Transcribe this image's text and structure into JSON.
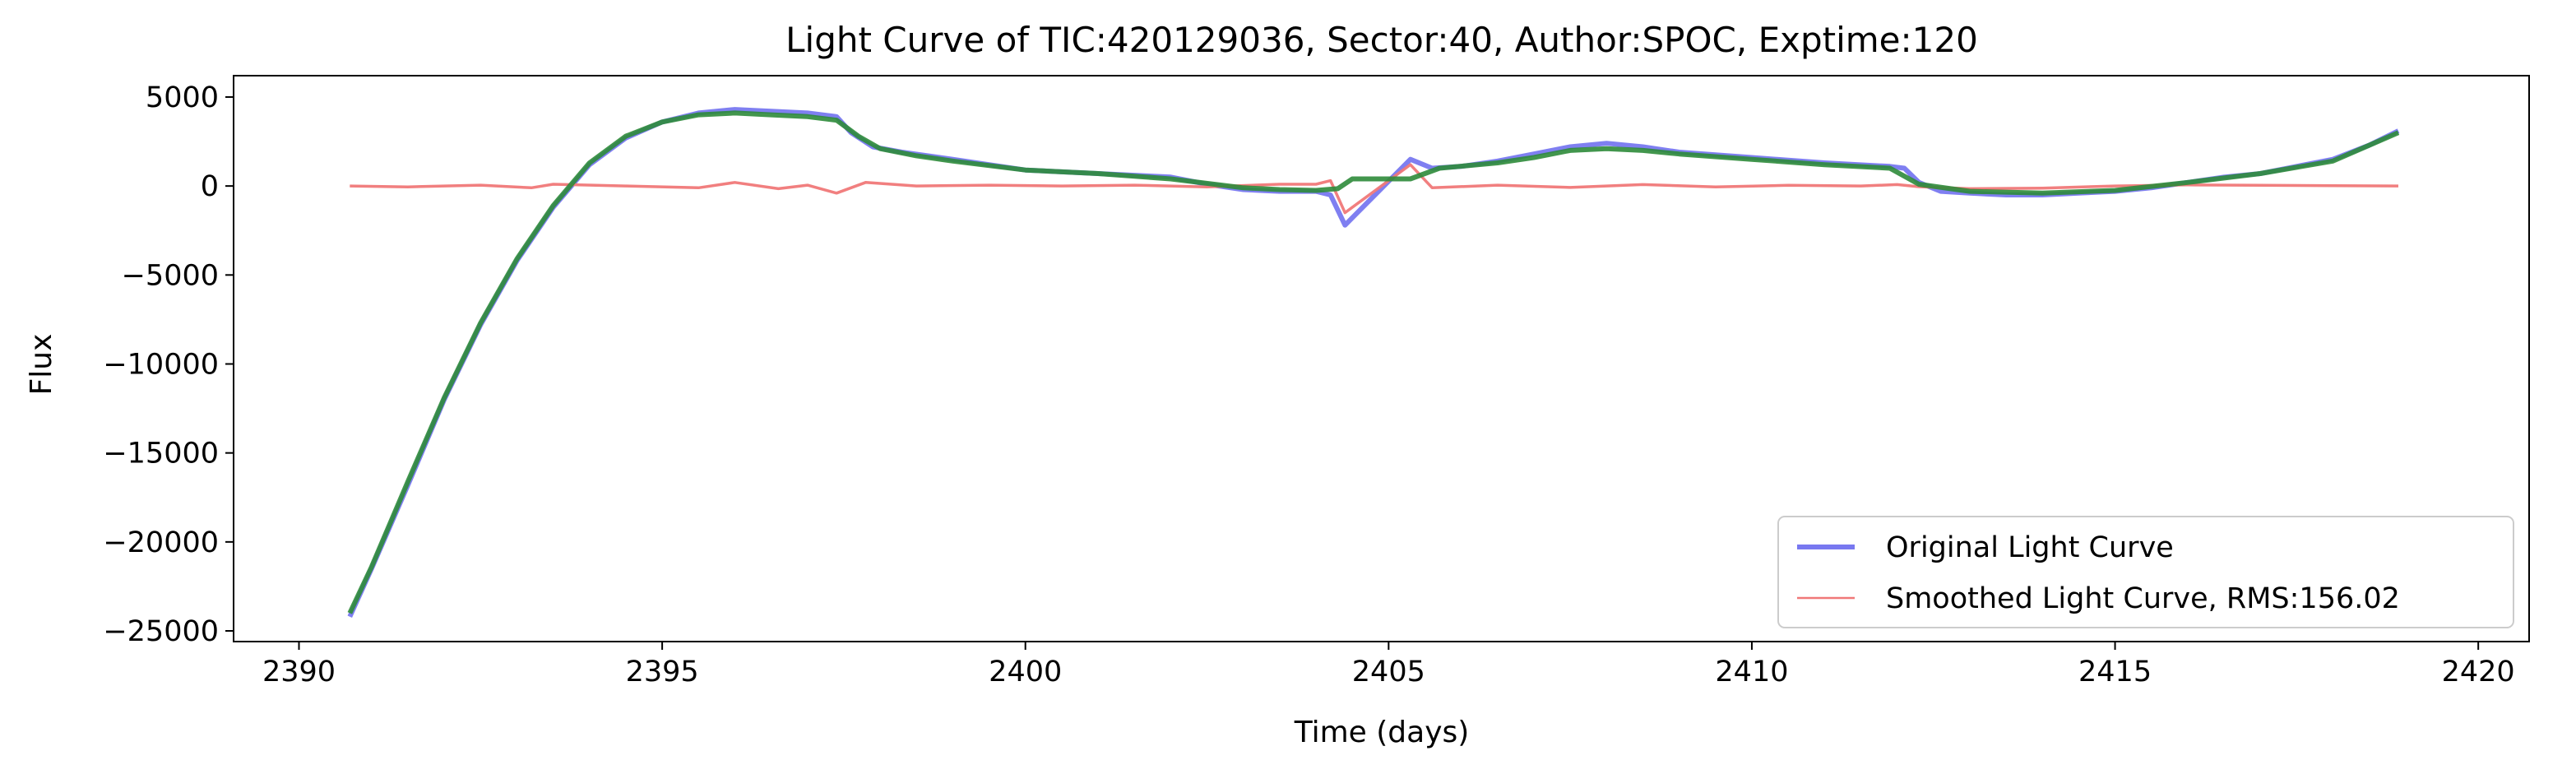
{
  "chart_data": {
    "type": "line",
    "title": "Light Curve of TIC:420129036, Sector:40, Author:SPOC, Exptime:120",
    "xlabel": "Time (days)",
    "ylabel": "Flux",
    "xlim": [
      2389.1,
      2420.7
    ],
    "ylim": [
      -25600,
      6200
    ],
    "xticks": [
      2390,
      2395,
      2400,
      2405,
      2410,
      2415,
      2420
    ],
    "xtick_labels": [
      "2390",
      "2395",
      "2400",
      "2405",
      "2410",
      "2415",
      "2420"
    ],
    "yticks": [
      5000,
      0,
      -5000,
      -10000,
      -15000,
      -20000,
      -25000
    ],
    "ytick_labels": [
      "5000",
      "0",
      "−5000",
      "−10000",
      "−15000",
      "−20000",
      "−25000"
    ],
    "grid": false,
    "legend_position": "lower-right",
    "series": [
      {
        "name": "Original Light Curve",
        "color": "#7878f0",
        "x": [
          2390.7,
          2391.0,
          2391.5,
          2392.0,
          2392.5,
          2393.0,
          2393.5,
          2394.0,
          2394.5,
          2395.0,
          2395.5,
          2396.0,
          2396.5,
          2397.0,
          2397.4,
          2397.6,
          2397.9,
          2398.3,
          2399.0,
          2400.0,
          2401.0,
          2402.0,
          2402.5,
          2403.0,
          2403.5,
          2404.0,
          2404.2,
          2404.4,
          2405.3,
          2405.6,
          2406.0,
          2406.5,
          2407.0,
          2407.5,
          2408.0,
          2408.5,
          2409.0,
          2410.0,
          2411.0,
          2411.9,
          2412.1,
          2412.3,
          2412.6,
          2413.0,
          2413.5,
          2414.0,
          2414.5,
          2415.0,
          2415.5,
          2416.0,
          2416.5,
          2417.0,
          2417.5,
          2418.0,
          2418.5,
          2418.9
        ],
        "values": [
          -24200,
          -21500,
          -16800,
          -12000,
          -7800,
          -4200,
          -1200,
          1200,
          2700,
          3600,
          4100,
          4300,
          4200,
          4100,
          3900,
          3000,
          2200,
          1900,
          1500,
          900,
          700,
          500,
          100,
          -200,
          -300,
          -300,
          -500,
          -2200,
          1500,
          1000,
          1100,
          1400,
          1800,
          2200,
          2400,
          2200,
          1900,
          1600,
          1300,
          1100,
          1000,
          200,
          -300,
          -400,
          -500,
          -500,
          -400,
          -300,
          -100,
          200,
          500,
          700,
          1100,
          1500,
          2300,
          3100
        ]
      },
      {
        "name": "Smoothed Light Curve, RMS:156.02",
        "color": "#f07878",
        "x": [
          2390.7,
          2391.5,
          2392.5,
          2393.2,
          2393.5,
          2394.5,
          2395.5,
          2396.0,
          2396.6,
          2397.0,
          2397.4,
          2397.8,
          2398.5,
          2399.5,
          2400.5,
          2401.5,
          2402.5,
          2403.5,
          2404.0,
          2404.2,
          2404.4,
          2405.3,
          2405.6,
          2406.5,
          2407.5,
          2408.5,
          2409.5,
          2410.5,
          2411.5,
          2412.0,
          2412.3,
          2413.0,
          2414.0,
          2415.0,
          2416.0,
          2417.0,
          2418.0,
          2418.9
        ],
        "values": [
          0,
          -50,
          50,
          -100,
          100,
          0,
          -100,
          200,
          -150,
          50,
          -400,
          200,
          0,
          50,
          0,
          50,
          -50,
          100,
          100,
          300,
          -1500,
          1200,
          -100,
          50,
          -80,
          80,
          -50,
          40,
          0,
          80,
          -40,
          -150,
          -120,
          0,
          60,
          40,
          20,
          0
        ]
      },
      {
        "color": "#2e8b3a",
        "x": [
          2390.7,
          2391.0,
          2391.5,
          2392.0,
          2392.5,
          2393.0,
          2393.5,
          2394.0,
          2394.5,
          2395.0,
          2395.5,
          2396.0,
          2396.5,
          2397.0,
          2397.4,
          2397.7,
          2398.0,
          2398.5,
          2399.0,
          2400.0,
          2401.0,
          2402.0,
          2403.0,
          2403.5,
          2404.0,
          2404.3,
          2404.5,
          2405.3,
          2405.7,
          2406.5,
          2407.0,
          2407.5,
          2408.0,
          2408.5,
          2409.0,
          2410.0,
          2411.0,
          2411.9,
          2412.3,
          2413.0,
          2414.0,
          2415.0,
          2416.0,
          2417.0,
          2418.0,
          2418.9
        ],
        "values": [
          -24000,
          -21400,
          -16600,
          -11900,
          -7700,
          -4100,
          -1100,
          1300,
          2800,
          3600,
          4000,
          4100,
          4000,
          3900,
          3700,
          2800,
          2100,
          1700,
          1400,
          900,
          700,
          400,
          -100,
          -200,
          -250,
          -150,
          400,
          400,
          1000,
          1300,
          1600,
          2000,
          2100,
          2000,
          1800,
          1500,
          1200,
          1000,
          100,
          -300,
          -400,
          -250,
          200,
          700,
          1400,
          3000
        ]
      }
    ]
  }
}
